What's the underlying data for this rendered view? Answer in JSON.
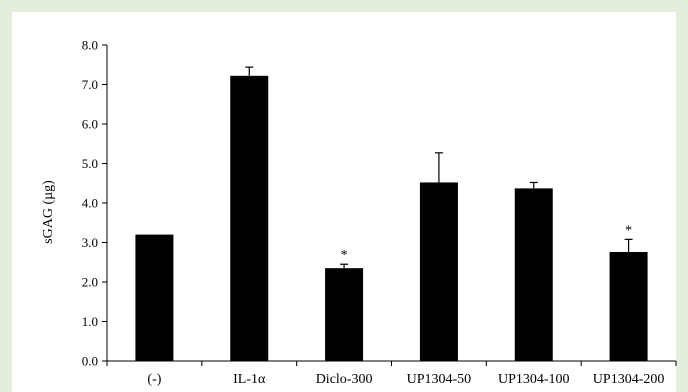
{
  "chart_data": {
    "type": "bar",
    "categories": [
      "(-)",
      "IL-1α",
      "Diclo-300",
      "UP1304-50",
      "UP1304-100",
      "UP1304-200"
    ],
    "values": [
      3.2,
      7.22,
      2.35,
      4.52,
      4.37,
      2.76
    ],
    "error": [
      0,
      0.22,
      0.1,
      0.75,
      0.15,
      0.32
    ],
    "significance": [
      "",
      "",
      "*",
      "",
      "",
      "*"
    ],
    "ylabel": "sGAG (µg)",
    "xlabel": "",
    "title": "",
    "ylim": [
      0,
      8
    ],
    "yticks": [
      "0.0",
      "1.0",
      "2.0",
      "3.0",
      "4.0",
      "5.0",
      "6.0",
      "7.0",
      "8.0"
    ],
    "grid": false,
    "legend": "none",
    "bar_color": "#000000"
  }
}
